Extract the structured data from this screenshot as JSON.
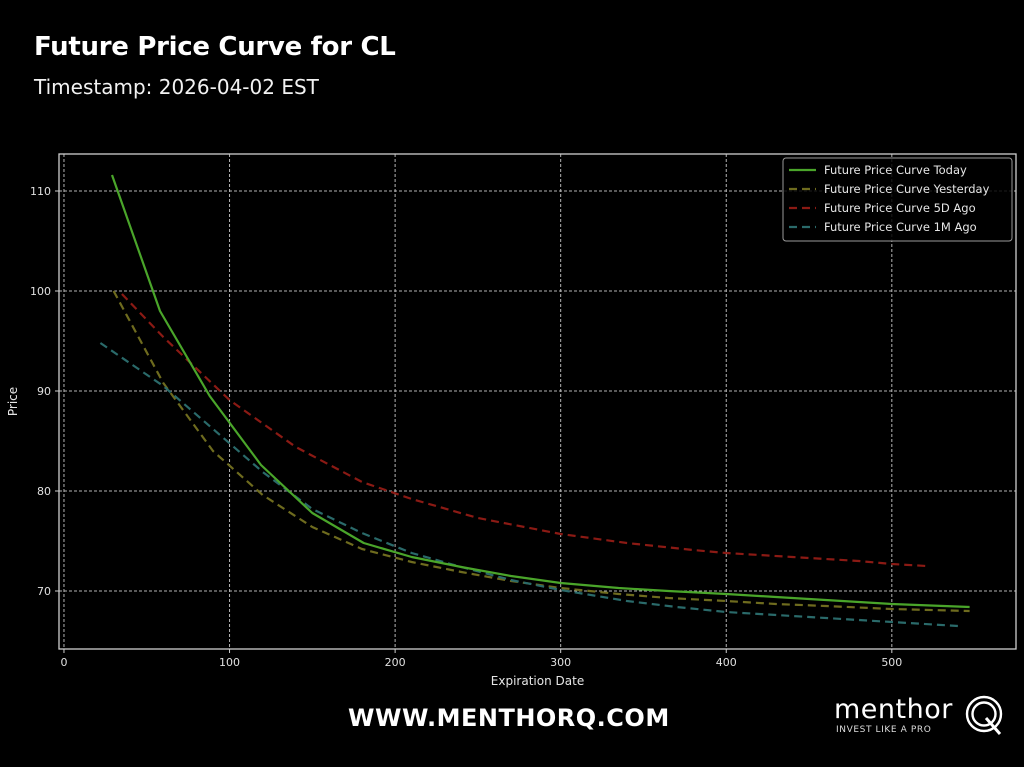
{
  "header": {
    "title": "Future Price Curve for CL",
    "subtitle": "Timestamp: 2026-04-02 EST"
  },
  "footer": {
    "url": "WWW.MENTHORQ.COM",
    "brand_name": "menthor",
    "brand_tagline": "INVEST LIKE A PRO",
    "brand_icon": "q-logo-icon"
  },
  "colors": {
    "background": "#000000",
    "grid": "#bbbbbb",
    "axis": "#cccccc",
    "today": "#4aa52a",
    "yesterday": "#6e6b1e",
    "five_day": "#8b1a14",
    "one_month": "#2a6a6a"
  },
  "chart_data": {
    "type": "line",
    "title": "Future Price Curve for CL",
    "subtitle": "Timestamp: 2026-04-02 EST",
    "xlabel": "Expiration Date",
    "ylabel": "Price",
    "xlim": [
      -3,
      575
    ],
    "ylim": [
      64.2,
      113.7
    ],
    "xticks": [
      0,
      100,
      200,
      300,
      400,
      500
    ],
    "yticks": [
      70,
      80,
      90,
      100,
      110
    ],
    "grid": true,
    "legend_position": "upper right",
    "series": [
      {
        "name": "Future Price Curve Today",
        "style": "solid",
        "color": "#4aa52a",
        "x": [
          29,
          58,
          88,
          119,
          150,
          181,
          210,
          240,
          270,
          300,
          335,
          365,
          400,
          430,
          460,
          500,
          547
        ],
        "y": [
          111.6,
          98.0,
          89.5,
          82.6,
          77.8,
          74.8,
          73.4,
          72.4,
          71.5,
          70.8,
          70.3,
          70.0,
          69.7,
          69.4,
          69.1,
          68.7,
          68.4
        ]
      },
      {
        "name": "Future Price Curve Yesterday",
        "style": "dashed",
        "color": "#6e6b1e",
        "x": [
          30,
          60,
          90,
          120,
          150,
          180,
          210,
          240,
          270,
          300,
          335,
          365,
          400,
          430,
          460,
          500,
          547
        ],
        "y": [
          100.0,
          90.8,
          84.0,
          79.6,
          76.4,
          74.2,
          72.9,
          71.9,
          71.0,
          70.3,
          69.7,
          69.3,
          69.0,
          68.7,
          68.5,
          68.2,
          68.0
        ]
      },
      {
        "name": "Future Price Curve 5D Ago",
        "style": "dashed",
        "color": "#8b1a14",
        "x": [
          35,
          60,
          100,
          140,
          180,
          210,
          250,
          300,
          340,
          380,
          400,
          440,
          480,
          500,
          521
        ],
        "y": [
          99.7,
          95.4,
          89.1,
          84.4,
          80.9,
          79.2,
          77.3,
          75.7,
          74.8,
          74.1,
          73.8,
          73.4,
          73.0,
          72.7,
          72.5
        ]
      },
      {
        "name": "Future Price Curve 1M Ago",
        "style": "dashed",
        "color": "#2a6a6a",
        "x": [
          22,
          60,
          90,
          120,
          150,
          180,
          210,
          240,
          270,
          300,
          340,
          370,
          400,
          440,
          470,
          500,
          540
        ],
        "y": [
          94.8,
          90.5,
          86.2,
          81.9,
          78.2,
          75.8,
          73.8,
          72.4,
          71.1,
          70.1,
          69.0,
          68.4,
          67.9,
          67.5,
          67.2,
          66.9,
          66.5
        ]
      }
    ]
  }
}
